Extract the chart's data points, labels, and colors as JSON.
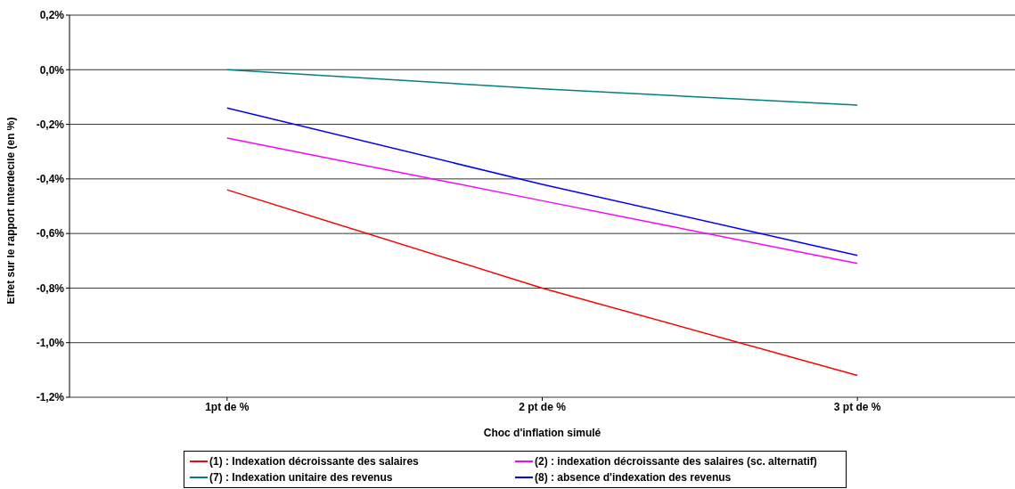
{
  "chart_data": {
    "type": "line",
    "xlabel": "Choc d'inflation simulé",
    "ylabel": "Effet sur le rapport interdécile (en %)",
    "categories": [
      "1pt de %",
      "2 pt de %",
      "3 pt de %"
    ],
    "series": [
      {
        "name": "(1) : Indexation décroissante des salaires",
        "color": "#ff0000",
        "values": [
          -0.44,
          -0.8,
          -1.12
        ]
      },
      {
        "name": "(2) : indexation décroissante des salaires (sc. alternatif)",
        "color": "#ff00ff",
        "values": [
          -0.25,
          -0.48,
          -0.71
        ]
      },
      {
        "name": "(7) : Indexation unitaire des revenus",
        "color": "#008080",
        "values": [
          0.0,
          -0.07,
          -0.13
        ]
      },
      {
        "name": "(8) : absence d'indexation des revenus",
        "color": "#0000ff",
        "values": [
          -0.14,
          -0.42,
          -0.68
        ]
      }
    ],
    "ylim": [
      -1.2,
      0.2
    ],
    "yticks": [
      {
        "value": -1.2,
        "label": "-1,2%"
      },
      {
        "value": -1.0,
        "label": "-1,0%"
      },
      {
        "value": -0.8,
        "label": "-0,8%"
      },
      {
        "value": -0.6,
        "label": "-0,6%"
      },
      {
        "value": -0.4,
        "label": "-0,4%"
      },
      {
        "value": -0.2,
        "label": "-0,2%"
      },
      {
        "value": 0.0,
        "label": "0,0%"
      },
      {
        "value": 0.2,
        "label": "0,2%"
      }
    ],
    "grid": "y",
    "legend": "bottom",
    "marker": "none",
    "line_style": "solid"
  }
}
